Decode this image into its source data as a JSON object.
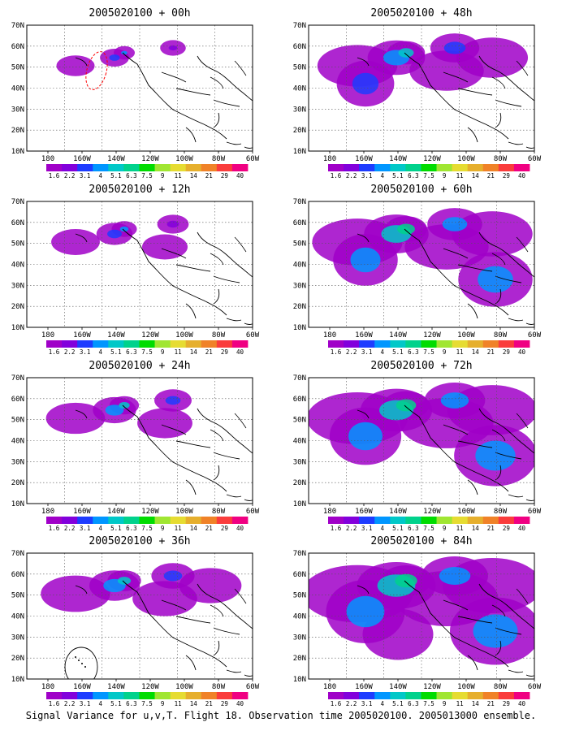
{
  "figure": {
    "caption": "Signal Variance for u,v,T. Flight 18. Observation time 2005020100. 2005013000 ensemble.",
    "x_ticks": [
      "180",
      "160W",
      "140W",
      "120W",
      "100W",
      "80W",
      "60W"
    ],
    "y_ticks": [
      "10N",
      "20N",
      "30N",
      "40N",
      "50N",
      "60N",
      "70N"
    ],
    "colorbar": {
      "labels": [
        "1.6",
        "2.2",
        "3.1",
        "4",
        "5.1",
        "6.3",
        "7.5",
        "9",
        "11",
        "14",
        "21",
        "29",
        "40"
      ],
      "colors": [
        "#a000c8",
        "#8200dc",
        "#1e3cff",
        "#0096ff",
        "#00c8c8",
        "#00d28c",
        "#00dc00",
        "#a0e632",
        "#e6dc32",
        "#e6af2d",
        "#f08228",
        "#fa3c3c",
        "#f00082"
      ]
    },
    "panels": [
      {
        "title": "2005020100 + 00h",
        "hour": 0
      },
      {
        "title": "2005020100 + 48h",
        "hour": 48
      },
      {
        "title": "2005020100 + 12h",
        "hour": 12
      },
      {
        "title": "2005020100 + 60h",
        "hour": 60
      },
      {
        "title": "2005020100 + 24h",
        "hour": 24
      },
      {
        "title": "2005020100 + 72h",
        "hour": 72
      },
      {
        "title": "2005020100 + 36h",
        "hour": 36
      },
      {
        "title": "2005020100 + 84h",
        "hour": 84
      }
    ]
  }
}
